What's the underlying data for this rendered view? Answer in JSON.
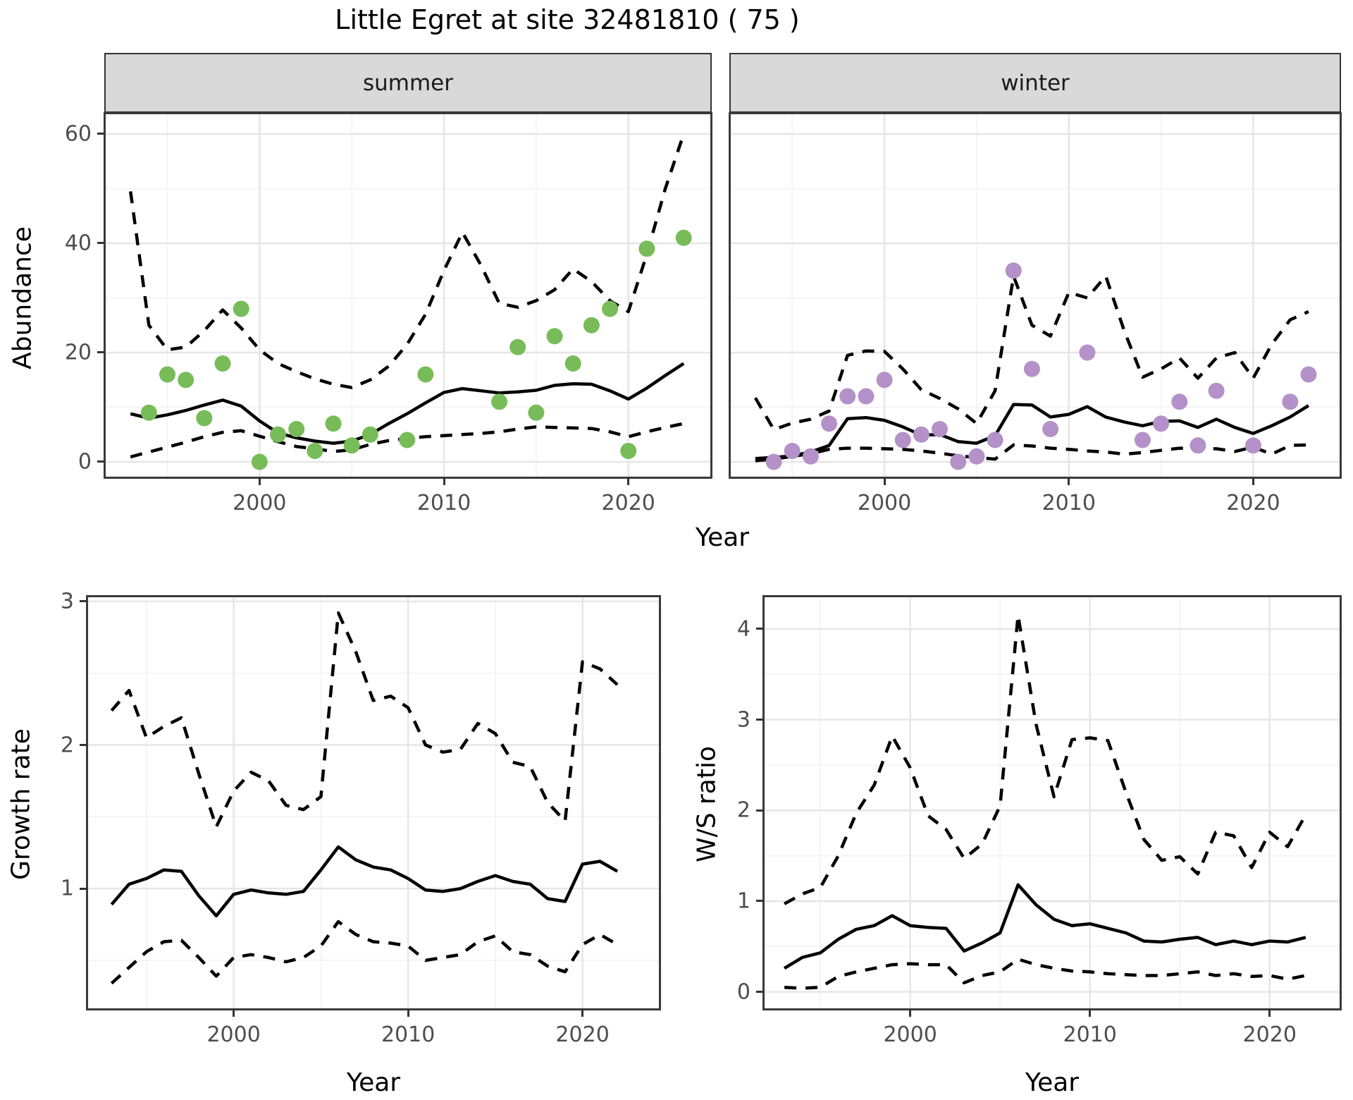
{
  "title": "Little Egret at site 32481810 ( 75 )",
  "colors": {
    "summer_point": "#77bc59",
    "winter_point": "#b491c8",
    "strip_bg": "#d9d9d9",
    "grid_major": "#e6e6e6",
    "grid_minor": "#f2f2f2",
    "line": "#000000"
  },
  "chart_data": [
    {
      "type": "line",
      "facet": "summer",
      "ylabel": "Abundance",
      "xlabel": "Year",
      "xlim": [
        1991.58,
        2024.52
      ],
      "ylim": [
        -2.97,
        63.87
      ],
      "xticks": [
        2000,
        2010,
        2020
      ],
      "yticks": [
        0,
        20,
        40,
        60
      ],
      "xticks_minor": [
        1995,
        2005,
        2015
      ],
      "yticks_minor": [
        10,
        30,
        50
      ],
      "grid": true,
      "series": [
        {
          "name": "upper-ci",
          "style": "dashed",
          "x": [
            1993,
            1994,
            1995,
            1996,
            1997,
            1998,
            1999,
            2000,
            2001,
            2002,
            2003,
            2004,
            2005,
            2006,
            2007,
            2008,
            2009,
            2010,
            2011,
            2012,
            2013,
            2014,
            2015,
            2016,
            2017,
            2018,
            2019,
            2020,
            2021,
            2022,
            2023
          ],
          "y": [
            49.5,
            25,
            20.5,
            21,
            24,
            27.8,
            24.5,
            20.5,
            18,
            16.5,
            15.2,
            14.2,
            13.6,
            15,
            17.5,
            21.5,
            27,
            35,
            42,
            36,
            29,
            28.3,
            29.5,
            31.5,
            35.3,
            33,
            29.5,
            27.5,
            38,
            50,
            60
          ]
        },
        {
          "name": "trend",
          "style": "solid",
          "x": [
            1993,
            1994,
            1995,
            1996,
            1997,
            1998,
            1999,
            2000,
            2001,
            2002,
            2003,
            2004,
            2005,
            2006,
            2007,
            2008,
            2009,
            2010,
            2011,
            2012,
            2013,
            2014,
            2015,
            2016,
            2017,
            2018,
            2019,
            2020,
            2021,
            2022,
            2023
          ],
          "y": [
            8.8,
            8,
            8.6,
            9.4,
            10.4,
            11.3,
            10.2,
            7.5,
            5.3,
            4.4,
            3.8,
            3.4,
            3.8,
            5,
            7,
            8.8,
            10.8,
            12.7,
            13.4,
            13,
            12.6,
            12.8,
            13.1,
            14,
            14.3,
            14.2,
            13,
            11.5,
            13.5,
            15.8,
            18
          ]
        },
        {
          "name": "lower-ci",
          "style": "dashed",
          "x": [
            1993,
            1994,
            1995,
            1996,
            1997,
            1998,
            1999,
            2000,
            2001,
            2002,
            2003,
            2004,
            2005,
            2006,
            2007,
            2008,
            2009,
            2010,
            2011,
            2012,
            2013,
            2014,
            2015,
            2016,
            2017,
            2018,
            2019,
            2020,
            2021,
            2022,
            2023
          ],
          "y": [
            0.9,
            1.8,
            2.7,
            3.6,
            4.6,
            5.4,
            5.7,
            4.7,
            3.7,
            2.8,
            2.4,
            1.9,
            2.2,
            3.2,
            3.9,
            4.3,
            4.6,
            4.8,
            5,
            5.2,
            5.5,
            6,
            6.4,
            6.3,
            6.2,
            6.1,
            5.5,
            4.6,
            5.5,
            6.3,
            7
          ]
        },
        {
          "name": "observations",
          "style": "points",
          "color_key": "summer_point",
          "x": [
            1994,
            1995,
            1996,
            1997,
            1998,
            1999,
            2000,
            2001,
            2002,
            2003,
            2004,
            2005,
            2006,
            2008,
            2009,
            2013,
            2014,
            2015,
            2016,
            2017,
            2018,
            2019,
            2020,
            2021,
            2023
          ],
          "y": [
            9,
            16,
            15,
            8,
            18,
            28,
            0,
            5,
            6,
            2,
            7,
            3,
            5,
            4,
            16,
            11,
            21,
            9,
            23,
            18,
            25,
            28,
            2,
            39,
            41
          ]
        }
      ]
    },
    {
      "type": "line",
      "facet": "winter",
      "ylabel": "Abundance",
      "xlabel": "Year",
      "xlim": [
        1991.59,
        2024.76
      ],
      "ylim": [
        -2.97,
        63.87
      ],
      "xticks": [
        2000,
        2010,
        2020
      ],
      "yticks": [
        0,
        20,
        40,
        60
      ],
      "xticks_minor": [
        1995,
        2005,
        2015
      ],
      "yticks_minor": [
        10,
        30,
        50
      ],
      "grid": true,
      "series": [
        {
          "name": "upper-ci",
          "style": "dashed",
          "x": [
            1993,
            1994,
            1995,
            1996,
            1997,
            1998,
            1999,
            2000,
            2001,
            2002,
            2003,
            2004,
            2005,
            2006,
            2007,
            2008,
            2009,
            2010,
            2011,
            2012,
            2013,
            2014,
            2015,
            2016,
            2017,
            2018,
            2019,
            2020,
            2021,
            2022,
            2023
          ],
          "y": [
            11.7,
            5.9,
            7.1,
            7.8,
            9.3,
            19.5,
            20.3,
            20.2,
            17,
            13.2,
            11.6,
            9.7,
            7,
            13,
            34,
            25,
            23,
            31,
            30,
            34,
            24,
            15.5,
            17,
            19,
            15.3,
            19,
            20,
            15.3,
            21.5,
            26,
            27.5
          ]
        },
        {
          "name": "trend",
          "style": "solid",
          "x": [
            1993,
            1994,
            1995,
            1996,
            1997,
            1998,
            1999,
            2000,
            2001,
            2002,
            2003,
            2004,
            2005,
            2006,
            2007,
            2008,
            2009,
            2010,
            2011,
            2012,
            2013,
            2014,
            2015,
            2016,
            2017,
            2018,
            2019,
            2020,
            2021,
            2022,
            2023
          ],
          "y": [
            0.6,
            0.8,
            1.1,
            1.8,
            3,
            7.9,
            8.1,
            7.6,
            6.4,
            4.9,
            5,
            3.7,
            3.4,
            4.8,
            10.5,
            10.4,
            8.2,
            8.7,
            10.1,
            8.2,
            7.3,
            6.6,
            7.4,
            7.5,
            6.3,
            7.8,
            6.3,
            5.2,
            6.6,
            8.2,
            10.3
          ]
        },
        {
          "name": "lower-ci",
          "style": "dashed",
          "x": [
            1993,
            1994,
            1995,
            1996,
            1997,
            1998,
            1999,
            2000,
            2001,
            2002,
            2003,
            2004,
            2005,
            2006,
            2007,
            2008,
            2009,
            2010,
            2011,
            2012,
            2013,
            2014,
            2015,
            2016,
            2017,
            2018,
            2019,
            2020,
            2021,
            2022,
            2023
          ],
          "y": [
            0.2,
            0.5,
            1,
            1.5,
            2.3,
            2.5,
            2.5,
            2.4,
            2.3,
            2,
            1.6,
            1.1,
            0.8,
            0.5,
            3.1,
            2.9,
            2.5,
            2.3,
            2,
            1.8,
            1.4,
            1.7,
            2.1,
            2.5,
            2.4,
            2.4,
            1.9,
            2.7,
            1.4,
            3,
            3.1
          ]
        },
        {
          "name": "observations",
          "style": "points",
          "color_key": "winter_point",
          "x": [
            1994,
            1995,
            1996,
            1997,
            1998,
            1999,
            2000,
            2001,
            2002,
            2003,
            2004,
            2005,
            2006,
            2007,
            2008,
            2009,
            2011,
            2014,
            2015,
            2016,
            2017,
            2018,
            2020,
            2022,
            2023
          ],
          "y": [
            0,
            2,
            1,
            7,
            12,
            12,
            15,
            4,
            5,
            6,
            0,
            1,
            4,
            35,
            17,
            6,
            20,
            4,
            7,
            11,
            3,
            13,
            3,
            11,
            16
          ]
        }
      ]
    },
    {
      "type": "line",
      "facet": null,
      "ylabel": "Growth rate",
      "xlabel": "Year",
      "xlim": [
        1991.57,
        2024.46
      ],
      "ylim": [
        0.156,
        3.039
      ],
      "xticks": [
        2000,
        2010,
        2020
      ],
      "yticks": [
        1,
        2,
        3
      ],
      "xticks_minor": [
        1995,
        2005,
        2015
      ],
      "yticks_minor": [
        0.5,
        1.5,
        2.5
      ],
      "grid": true,
      "series": [
        {
          "name": "upper-ci",
          "style": "dashed",
          "x": [
            1993,
            1994,
            1995,
            1996,
            1997,
            1998,
            1999,
            2000,
            2001,
            2002,
            2003,
            2004,
            2005,
            2006,
            2007,
            2008,
            2009,
            2010,
            2011,
            2012,
            2013,
            2014,
            2015,
            2016,
            2017,
            2018,
            2019,
            2020,
            2021,
            2022
          ],
          "y": [
            2.24,
            2.38,
            2.05,
            2.13,
            2.19,
            1.8,
            1.43,
            1.68,
            1.81,
            1.75,
            1.58,
            1.55,
            1.64,
            2.92,
            2.65,
            2.31,
            2.34,
            2.26,
            2,
            1.95,
            1.97,
            2.15,
            2.08,
            1.88,
            1.85,
            1.6,
            1.47,
            2.58,
            2.53,
            2.42
          ]
        },
        {
          "name": "trend",
          "style": "solid",
          "x": [
            1993,
            1994,
            1995,
            1996,
            1997,
            1998,
            1999,
            2000,
            2001,
            2002,
            2003,
            2004,
            2005,
            2006,
            2007,
            2008,
            2009,
            2010,
            2011,
            2012,
            2013,
            2014,
            2015,
            2016,
            2017,
            2018,
            2019,
            2020,
            2021,
            2022
          ],
          "y": [
            0.89,
            1.03,
            1.07,
            1.13,
            1.12,
            0.95,
            0.81,
            0.96,
            0.99,
            0.97,
            0.96,
            0.98,
            1.13,
            1.29,
            1.2,
            1.15,
            1.13,
            1.07,
            0.99,
            0.98,
            1,
            1.05,
            1.09,
            1.05,
            1.03,
            0.93,
            0.91,
            1.17,
            1.19,
            1.12
          ]
        },
        {
          "name": "lower-ci",
          "style": "dashed",
          "x": [
            1993,
            1994,
            1995,
            1996,
            1997,
            1998,
            1999,
            2000,
            2001,
            2002,
            2003,
            2004,
            2005,
            2006,
            2007,
            2008,
            2009,
            2010,
            2011,
            2012,
            2013,
            2014,
            2015,
            2016,
            2017,
            2018,
            2019,
            2020,
            2021,
            2022
          ],
          "y": [
            0.34,
            0.45,
            0.56,
            0.63,
            0.64,
            0.52,
            0.39,
            0.52,
            0.54,
            0.52,
            0.49,
            0.52,
            0.6,
            0.77,
            0.68,
            0.63,
            0.62,
            0.6,
            0.5,
            0.52,
            0.54,
            0.63,
            0.67,
            0.56,
            0.54,
            0.46,
            0.42,
            0.61,
            0.68,
            0.61
          ]
        }
      ]
    },
    {
      "type": "line",
      "facet": null,
      "ylabel": "W/S ratio",
      "xlabel": "Year",
      "xlim": [
        1991.82,
        2023.97
      ],
      "ylim": [
        -0.197,
        4.365
      ],
      "xticks": [
        2000,
        2010,
        2020
      ],
      "yticks": [
        0,
        1,
        2,
        3,
        4
      ],
      "xticks_minor": [
        1995,
        2005,
        2015
      ],
      "yticks_minor": [
        0.5,
        1.5,
        2.5,
        3.5
      ],
      "grid": true,
      "series": [
        {
          "name": "upper-ci",
          "style": "dashed",
          "x": [
            1993,
            1994,
            1995,
            1996,
            1997,
            1998,
            1999,
            2000,
            2001,
            2002,
            2003,
            2004,
            2005,
            2006,
            2007,
            2008,
            2009,
            2010,
            2011,
            2012,
            2013,
            2014,
            2015,
            2016,
            2017,
            2018,
            2019,
            2020,
            2021,
            2022
          ],
          "y": [
            0.97,
            1.08,
            1.15,
            1.5,
            1.97,
            2.28,
            2.82,
            2.47,
            1.94,
            1.79,
            1.47,
            1.63,
            2.05,
            4.15,
            2.95,
            2.15,
            2.78,
            2.8,
            2.77,
            2.2,
            1.68,
            1.45,
            1.49,
            1.3,
            1.76,
            1.72,
            1.37,
            1.76,
            1.6,
            1.95
          ]
        },
        {
          "name": "trend",
          "style": "solid",
          "x": [
            1993,
            1994,
            1995,
            1996,
            1997,
            1998,
            1999,
            2000,
            2001,
            2002,
            2003,
            2004,
            2005,
            2006,
            2007,
            2008,
            2009,
            2010,
            2011,
            2012,
            2013,
            2014,
            2015,
            2016,
            2017,
            2018,
            2019,
            2020,
            2021,
            2022
          ],
          "y": [
            0.26,
            0.38,
            0.43,
            0.58,
            0.69,
            0.73,
            0.84,
            0.73,
            0.71,
            0.7,
            0.45,
            0.54,
            0.65,
            1.18,
            0.96,
            0.8,
            0.73,
            0.75,
            0.7,
            0.65,
            0.56,
            0.55,
            0.58,
            0.6,
            0.52,
            0.56,
            0.52,
            0.56,
            0.55,
            0.6
          ]
        },
        {
          "name": "lower-ci",
          "style": "dashed",
          "x": [
            1993,
            1994,
            1995,
            1996,
            1997,
            1998,
            1999,
            2000,
            2001,
            2002,
            2003,
            2004,
            2005,
            2006,
            2007,
            2008,
            2009,
            2010,
            2011,
            2012,
            2013,
            2014,
            2015,
            2016,
            2017,
            2018,
            2019,
            2020,
            2021,
            2022
          ],
          "y": [
            0.05,
            0.04,
            0.05,
            0.17,
            0.22,
            0.26,
            0.3,
            0.31,
            0.3,
            0.3,
            0.1,
            0.18,
            0.22,
            0.36,
            0.3,
            0.26,
            0.23,
            0.22,
            0.2,
            0.19,
            0.18,
            0.18,
            0.2,
            0.22,
            0.18,
            0.2,
            0.17,
            0.18,
            0.14,
            0.18
          ]
        }
      ]
    }
  ]
}
